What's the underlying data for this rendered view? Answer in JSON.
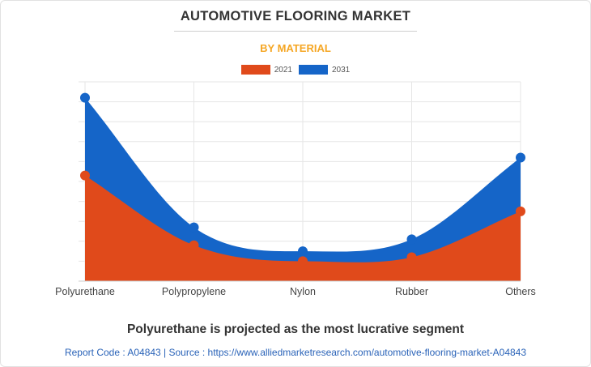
{
  "header": {
    "title": "AUTOMOTIVE FLOORING MARKET",
    "subtitle": "BY MATERIAL"
  },
  "footer": {
    "headline": "Polyurethane is projected as the most lucrative segment",
    "source": "Report Code : A04843  |  Source : https://www.alliedmarketresearch.com/automotive-flooring-market-A04843"
  },
  "colors": {
    "series_2021": "#e04a1b",
    "series_2031": "#1565c8",
    "grid": "#e6e6e6"
  },
  "chart_data": {
    "type": "area",
    "title": "AUTOMOTIVE FLOORING MARKET",
    "subtitle": "BY MATERIAL",
    "categories": [
      "Polyurethane",
      "Polypropylene",
      "Nylon",
      "Rubber",
      "Others"
    ],
    "series": [
      {
        "name": "2031",
        "values": [
          9.2,
          2.7,
          1.5,
          2.1,
          6.2
        ]
      },
      {
        "name": "2021",
        "values": [
          5.3,
          1.8,
          1.0,
          1.2,
          3.5
        ]
      }
    ],
    "ylim": [
      0,
      10
    ],
    "y_tick_labels_shown": false,
    "grid": true,
    "legend": "top-center",
    "xlabel": "",
    "ylabel": ""
  }
}
